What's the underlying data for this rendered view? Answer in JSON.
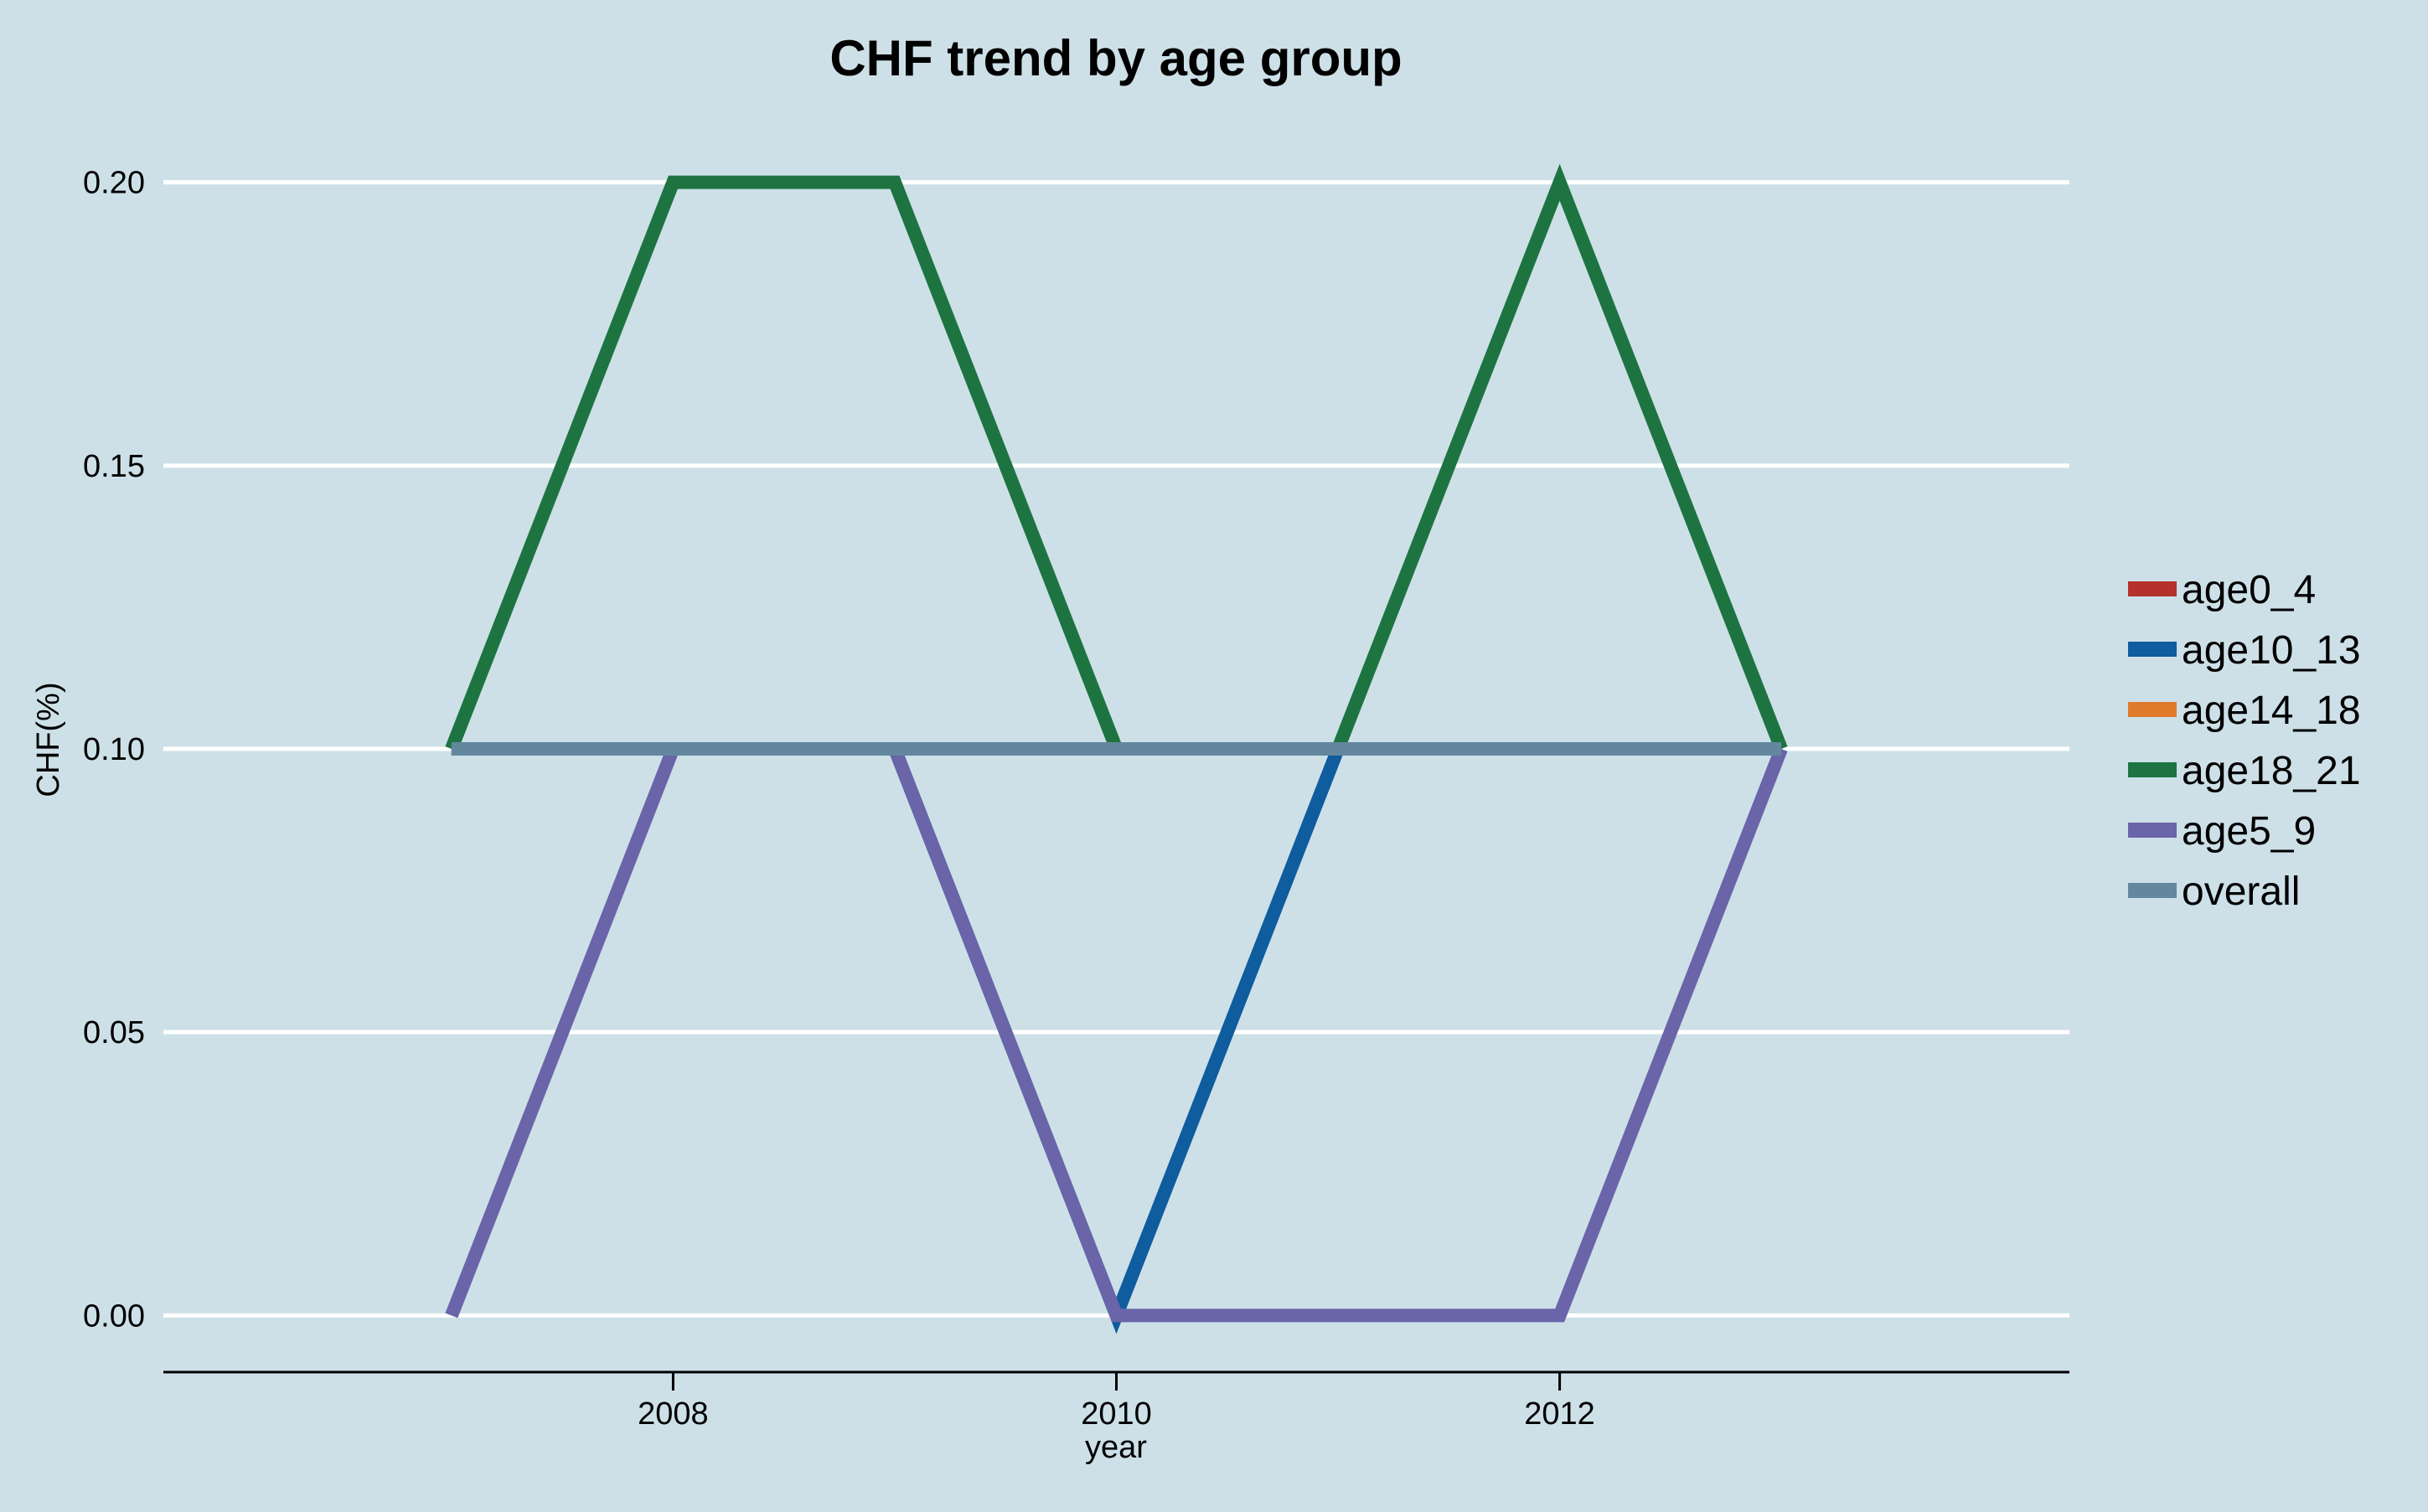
{
  "chart_data": {
    "type": "line",
    "title": "CHF trend by age group",
    "xlabel": "year",
    "ylabel": "CHF(%)",
    "x": [
      2007,
      2008,
      2009,
      2010,
      2011,
      2012,
      2013
    ],
    "xlim": [
      2005.7,
      2014.3
    ],
    "x_ticks": [
      2008,
      2010,
      2012
    ],
    "x_tick_labels": [
      "2008",
      "2010",
      "2012"
    ],
    "ylim": [
      -0.01,
      0.21
    ],
    "y_ticks": [
      0.0,
      0.05,
      0.1,
      0.15,
      0.2
    ],
    "y_tick_labels": [
      "0.00",
      "0.05",
      "0.10",
      "0.15",
      "0.20"
    ],
    "grid": "horizontal",
    "legend_position": "right",
    "series": [
      {
        "name": "age0_4",
        "color": "#b5312c",
        "values": [
          0.1,
          0.1,
          0.1,
          0.1,
          0.1,
          0.1,
          0.1
        ]
      },
      {
        "name": "age10_13",
        "color": "#0f5c9e",
        "values": [
          0.1,
          0.1,
          0.1,
          0.0,
          0.1,
          0.1,
          0.1
        ]
      },
      {
        "name": "age14_18",
        "color": "#e07a2b",
        "values": [
          0.1,
          0.1,
          0.1,
          0.1,
          0.1,
          0.1,
          0.1
        ]
      },
      {
        "name": "age18_21",
        "color": "#1e7441",
        "values": [
          0.1,
          0.2,
          0.2,
          0.1,
          0.1,
          0.2,
          0.1
        ]
      },
      {
        "name": "age5_9",
        "color": "#6a64a8",
        "values": [
          0.0,
          0.1,
          0.1,
          0.0,
          0.0,
          0.0,
          0.1
        ]
      },
      {
        "name": "overall",
        "color": "#63879f",
        "values": [
          0.1,
          0.1,
          0.1,
          0.1,
          0.1,
          0.1,
          0.1
        ]
      }
    ]
  }
}
